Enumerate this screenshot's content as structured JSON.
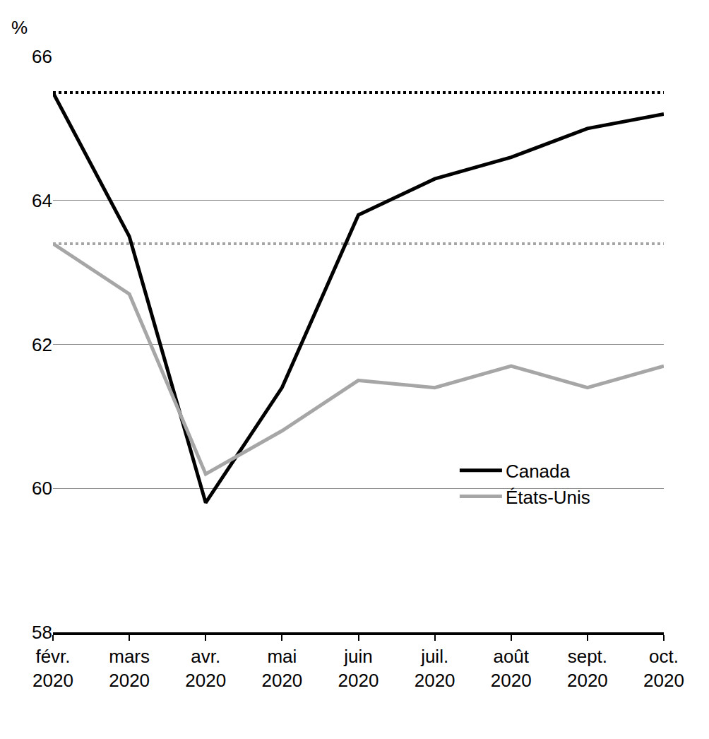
{
  "chart_data": {
    "type": "line",
    "y_label": "%",
    "categories": [
      "févr.\n2020",
      "mars\n2020",
      "avr.\n2020",
      "mai\n2020",
      "juin\n2020",
      "juil.\n2020",
      "août\n2020",
      "sept.\n2020",
      "oct.\n2020"
    ],
    "series": [
      {
        "name": "Canada",
        "color": "#000000",
        "line_style": "solid",
        "reference": 65.5,
        "values": [
          65.5,
          63.5,
          59.8,
          61.4,
          63.8,
          64.3,
          64.6,
          65.0,
          65.2
        ]
      },
      {
        "name": "États-Unis",
        "color": "#a6a6a6",
        "line_style": "solid",
        "reference": 63.4,
        "values": [
          63.4,
          62.7,
          60.2,
          60.8,
          61.5,
          61.4,
          61.7,
          61.4,
          61.7
        ]
      }
    ],
    "ylim": [
      58,
      66
    ],
    "yticks": [
      58,
      60,
      62,
      64,
      66
    ],
    "grid": true,
    "legend": "lower right"
  }
}
